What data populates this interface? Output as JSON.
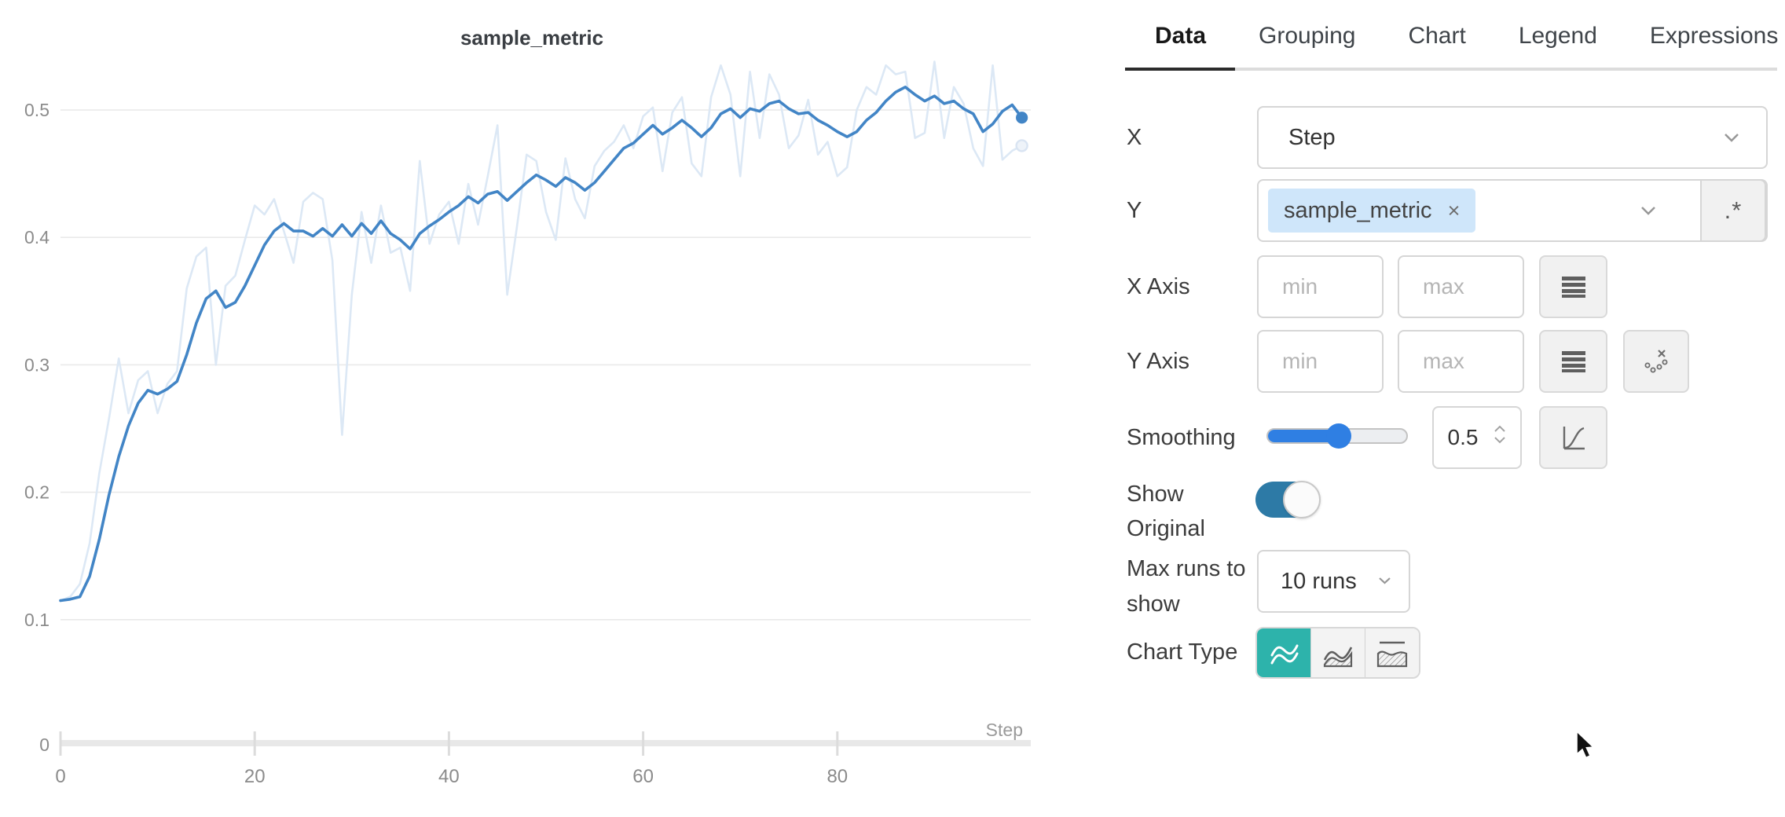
{
  "chart_data": {
    "type": "line",
    "title": "sample_metric",
    "xlabel": "Step",
    "ylabel": "",
    "x_range": [
      0,
      100
    ],
    "ylim": [
      0,
      0.55
    ],
    "grid": "horizontal",
    "legend": "none",
    "smoothing": 0.5,
    "x_ticks": [
      {
        "v": 0,
        "label": "0"
      },
      {
        "v": 20,
        "label": "20"
      },
      {
        "v": 40,
        "label": "40"
      },
      {
        "v": 60,
        "label": "60"
      },
      {
        "v": 80,
        "label": "80"
      }
    ],
    "y_ticks": [
      {
        "v": 0.5,
        "label": "0.5"
      },
      {
        "v": 0.4,
        "label": "0.4"
      },
      {
        "v": 0.3,
        "label": "0.3"
      },
      {
        "v": 0.2,
        "label": "0.2"
      },
      {
        "v": 0.1,
        "label": "0.1"
      },
      {
        "v": 0,
        "label": "0"
      }
    ],
    "series": [
      {
        "name": "sample_metric (smoothed)",
        "color": "#4285c6",
        "values": [
          0.115,
          0.116,
          0.118,
          0.134,
          0.163,
          0.198,
          0.228,
          0.252,
          0.27,
          0.28,
          0.277,
          0.281,
          0.287,
          0.308,
          0.333,
          0.352,
          0.358,
          0.345,
          0.349,
          0.362,
          0.378,
          0.394,
          0.405,
          0.411,
          0.405,
          0.405,
          0.401,
          0.407,
          0.401,
          0.41,
          0.401,
          0.411,
          0.403,
          0.413,
          0.403,
          0.398,
          0.391,
          0.403,
          0.409,
          0.414,
          0.42,
          0.425,
          0.432,
          0.427,
          0.434,
          0.436,
          0.429,
          0.436,
          0.443,
          0.449,
          0.445,
          0.44,
          0.447,
          0.443,
          0.437,
          0.443,
          0.452,
          0.461,
          0.47,
          0.474,
          0.481,
          0.488,
          0.481,
          0.486,
          0.492,
          0.486,
          0.479,
          0.486,
          0.497,
          0.501,
          0.494,
          0.501,
          0.499,
          0.505,
          0.507,
          0.501,
          0.497,
          0.498,
          0.492,
          0.488,
          0.483,
          0.479,
          0.483,
          0.492,
          0.498,
          0.507,
          0.514,
          0.518,
          0.512,
          0.507,
          0.511,
          0.505,
          0.507,
          0.501,
          0.497,
          0.483,
          0.489,
          0.499,
          0.504,
          0.494
        ]
      },
      {
        "name": "sample_metric (original)",
        "color": "#dce8f5",
        "values": [
          0.115,
          0.118,
          0.128,
          0.16,
          0.215,
          0.258,
          0.305,
          0.262,
          0.288,
          0.295,
          0.262,
          0.285,
          0.295,
          0.36,
          0.385,
          0.392,
          0.3,
          0.362,
          0.37,
          0.398,
          0.425,
          0.418,
          0.43,
          0.405,
          0.38,
          0.428,
          0.435,
          0.43,
          0.382,
          0.245,
          0.355,
          0.42,
          0.38,
          0.425,
          0.388,
          0.392,
          0.358,
          0.46,
          0.395,
          0.418,
          0.428,
          0.395,
          0.442,
          0.41,
          0.448,
          0.488,
          0.355,
          0.408,
          0.465,
          0.46,
          0.42,
          0.398,
          0.462,
          0.43,
          0.415,
          0.456,
          0.468,
          0.475,
          0.488,
          0.47,
          0.495,
          0.502,
          0.452,
          0.498,
          0.51,
          0.458,
          0.448,
          0.51,
          0.535,
          0.512,
          0.448,
          0.53,
          0.478,
          0.528,
          0.512,
          0.47,
          0.48,
          0.508,
          0.465,
          0.475,
          0.448,
          0.455,
          0.5,
          0.518,
          0.512,
          0.535,
          0.528,
          0.53,
          0.478,
          0.482,
          0.538,
          0.478,
          0.518,
          0.505,
          0.47,
          0.456,
          0.535,
          0.461,
          0.468,
          0.472
        ]
      }
    ]
  },
  "panel": {
    "tabs": [
      {
        "label": "Data",
        "active": true
      },
      {
        "label": "Grouping",
        "active": false
      },
      {
        "label": "Chart",
        "active": false
      },
      {
        "label": "Legend",
        "active": false
      },
      {
        "label": "Expressions",
        "active": false
      }
    ],
    "rows": {
      "x": {
        "label": "X",
        "value": "Step"
      },
      "y": {
        "label": "Y",
        "tag": "sample_metric",
        "tag_close": "×",
        "regex_button": ".*"
      },
      "x_axis": {
        "label": "X Axis",
        "min_placeholder": "min",
        "max_placeholder": "max"
      },
      "y_axis": {
        "label": "Y Axis",
        "min_placeholder": "min",
        "max_placeholder": "max"
      },
      "smoothing": {
        "label": "Smoothing",
        "value": "0.5"
      },
      "show_original": {
        "label": "Show Original",
        "state": "on"
      },
      "max_runs": {
        "label": "Max runs to show",
        "value": "10 runs"
      },
      "chart_type": {
        "label": "Chart Type",
        "selected": "line-plot"
      }
    },
    "icons": {
      "x_axis_button": "log-scale-icon",
      "y_axis_buttons": [
        "log-scale-icon",
        "ignore-outliers-icon"
      ],
      "smoothing_button": "smoothing-type-icon",
      "chart_type_buttons": [
        "line-plot-icon",
        "area-plot-icon",
        "percentile-plot-icon"
      ]
    },
    "colors": {
      "accent_blue": "#2f7fe3",
      "toggle_on": "#2d7aa6",
      "teal_active": "#2db3ab",
      "tag_bg": "#cfe6fa",
      "line_smoothed": "#4285c6",
      "line_original": "#dce8f5"
    }
  }
}
